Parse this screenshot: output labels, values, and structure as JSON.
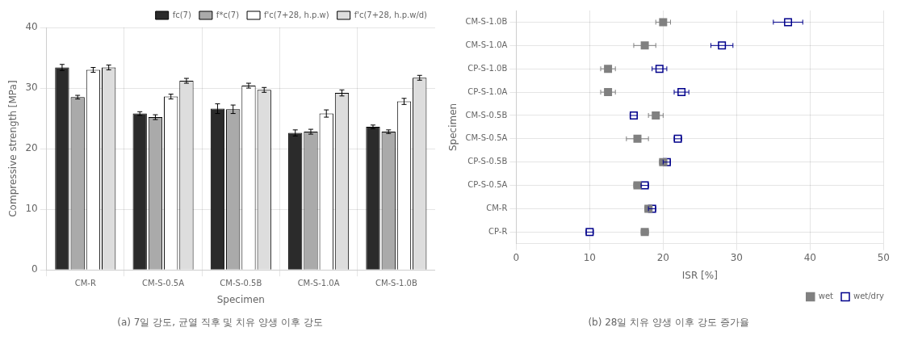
{
  "chart_data": [
    {
      "type": "bar",
      "title": "(a) 7일 강도, 균열 직후 및 치유 양생 이후 강도",
      "xlabel": "Specimen",
      "ylabel": "Compressive strength [MPa]",
      "categories": [
        "CM-R",
        "CM-S-0.5A",
        "CM-S-0.5B",
        "CM-S-1.0A",
        "CM-S-1.0B"
      ],
      "series": [
        {
          "name": "fc(7)",
          "color": "#2b2b2b",
          "values": [
            33.4,
            25.8,
            26.6,
            22.6,
            23.6
          ],
          "errors": [
            0.5,
            0.3,
            0.8,
            0.5,
            0.3
          ]
        },
        {
          "name": "f*c(7)",
          "color": "#aaaaaa",
          "values": [
            28.5,
            25.2,
            26.5,
            22.8,
            22.8
          ],
          "errors": [
            0.3,
            0.4,
            0.7,
            0.4,
            0.3
          ]
        },
        {
          "name": "f'c(7+28, h.p.w)",
          "color": "#ffffff",
          "values": [
            33.0,
            28.6,
            30.4,
            25.8,
            27.8
          ],
          "errors": [
            0.4,
            0.4,
            0.4,
            0.6,
            0.5
          ]
        },
        {
          "name": "f'c(7+28, h.p.w/d)",
          "color": "#dddddd",
          "values": [
            33.4,
            31.2,
            29.7,
            29.2,
            31.7
          ],
          "errors": [
            0.4,
            0.4,
            0.4,
            0.5,
            0.4
          ]
        }
      ],
      "ylim": [
        0,
        40
      ],
      "yticks": [
        0,
        10,
        20,
        30,
        40
      ],
      "grid": true,
      "legend": "upper right"
    },
    {
      "type": "scatter",
      "orientation": "horizontal",
      "title": "(b) 28일 치유 양생 이후 강도 증가율",
      "xlabel": "ISR [%]",
      "ylabel": "Specimen",
      "categories": [
        "CP-R",
        "CM-R",
        "CP-S-0.5A",
        "CP-S-0.5B",
        "CM-S-0.5A",
        "CM-S-0.5B",
        "CP-S-1.0A",
        "CP-S-1.0B",
        "CM-S-1.0A",
        "CM-S-1.0B"
      ],
      "series": [
        {
          "name": "wet",
          "color": "#808080",
          "marker": "square",
          "values": [
            17.5,
            18.0,
            16.5,
            20.0,
            16.5,
            19.0,
            12.5,
            12.5,
            17.5,
            20.0
          ],
          "errors": [
            0.5,
            0.5,
            0.5,
            0.5,
            1.5,
            1.0,
            1.0,
            1.0,
            1.5,
            1.0
          ]
        },
        {
          "name": "wet/dry",
          "color": "#00008B",
          "marker": "open_square",
          "values": [
            10.0,
            18.5,
            17.5,
            20.5,
            22.0,
            16.0,
            22.5,
            19.5,
            28.0,
            37.0
          ],
          "errors": [
            0.5,
            0.5,
            0.5,
            0.5,
            0.5,
            0.5,
            1.0,
            1.0,
            1.5,
            2.0
          ]
        }
      ],
      "xlim": [
        0,
        50
      ],
      "xticks": [
        0,
        10,
        20,
        30,
        40,
        50
      ],
      "grid": true,
      "legend": "lower right"
    }
  ]
}
